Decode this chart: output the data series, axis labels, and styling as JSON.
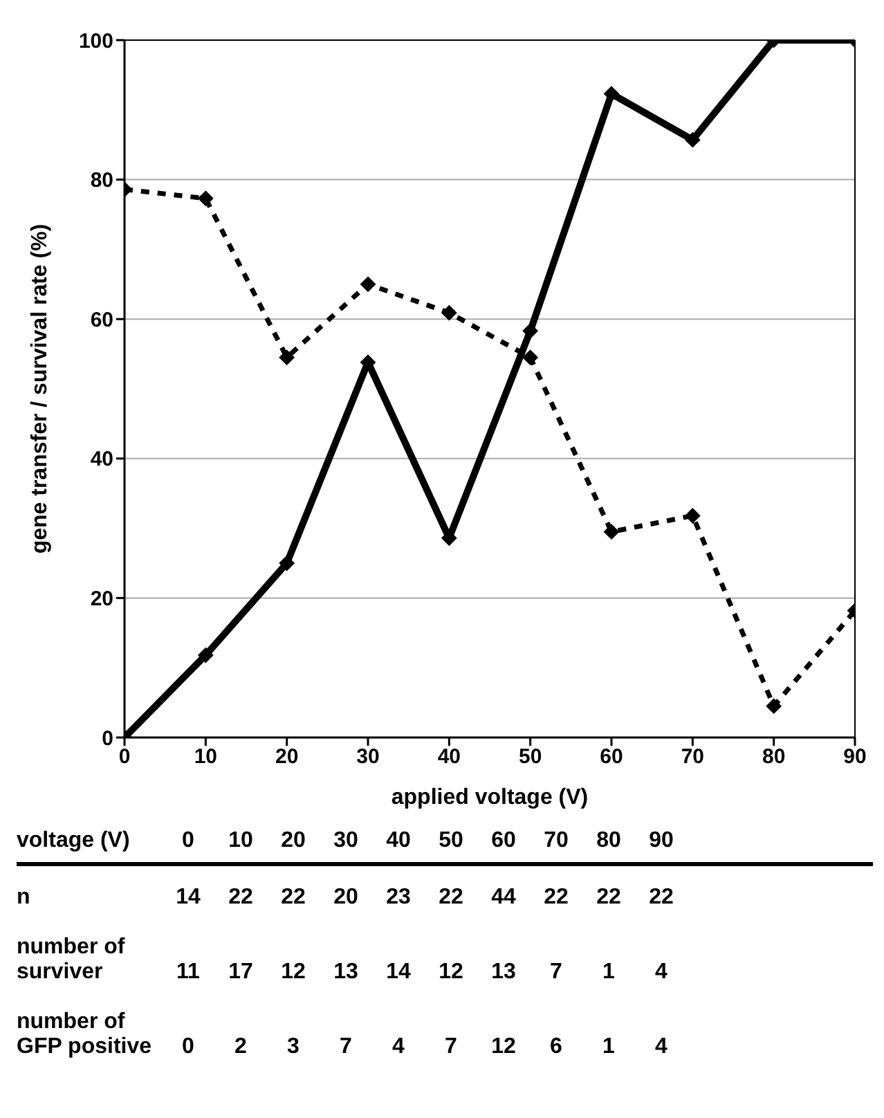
{
  "chart_data": {
    "type": "line",
    "xlabel": "applied voltage (V)",
    "ylabel": "gene transfer / survival rate (%)",
    "x": [
      0,
      10,
      20,
      30,
      40,
      50,
      60,
      70,
      80,
      90
    ],
    "series": [
      {
        "color": "#000000",
        "line_style": "solid",
        "values": [
          0,
          11.8,
          25,
          53.8,
          28.6,
          58.3,
          92.3,
          85.7,
          100,
          100
        ]
      },
      {
        "color": "#000000",
        "line_style": "dashed",
        "values": [
          78.6,
          77.3,
          54.5,
          65,
          60.9,
          54.5,
          29.5,
          31.8,
          4.5,
          18.2
        ]
      }
    ],
    "xlim": [
      0,
      90
    ],
    "xticks": [
      0,
      10,
      20,
      30,
      40,
      50,
      60,
      70,
      80,
      90
    ],
    "ylim": [
      0,
      100
    ],
    "yticks": [
      0,
      20,
      40,
      60,
      80,
      100
    ],
    "grid": "y",
    "marker": "diamond",
    "legend": false,
    "annotations": [
      "voltage (V)",
      "0 10 20 30 40 50 60 70 80 90",
      "n",
      "14 22 22 20 23 22 44 22 22 22",
      "number of surviver",
      "11 17 12 13 14 12 13 7 1 4",
      "number of GFP positive",
      "0 2 3 7 4 7 12 6 1 4"
    ]
  }
}
